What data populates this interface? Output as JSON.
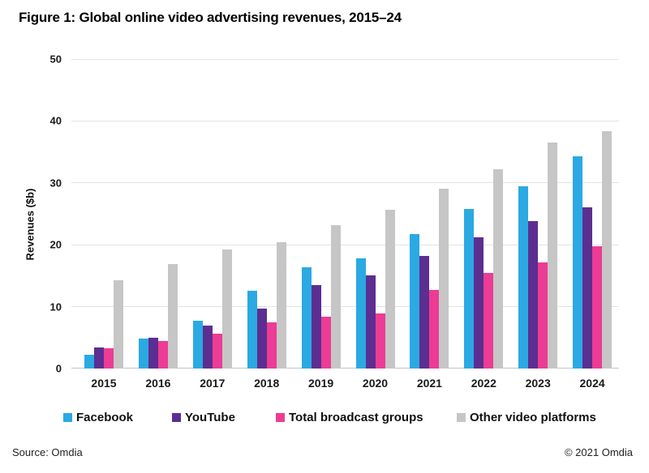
{
  "title": "Figure 1: Global online video advertising revenues, 2015–24",
  "chart_data": {
    "type": "bar",
    "title": "Figure 1: Global online video advertising revenues, 2015–24",
    "xlabel": "",
    "ylabel": "Revenues ($b)",
    "ylim": [
      0,
      50
    ],
    "yticks": [
      0,
      10,
      20,
      30,
      40,
      50
    ],
    "grid": true,
    "legend_position": "bottom",
    "categories": [
      "2015",
      "2016",
      "2017",
      "2018",
      "2019",
      "2020",
      "2021",
      "2022",
      "2023",
      "2024"
    ],
    "series": [
      {
        "name": "Facebook",
        "color": "#2BA9E2",
        "values": [
          2.2,
          4.8,
          7.7,
          12.6,
          16.4,
          17.8,
          21.7,
          25.8,
          29.5,
          34.3
        ]
      },
      {
        "name": "YouTube",
        "color": "#5C2E91",
        "values": [
          3.4,
          5.0,
          6.9,
          9.7,
          13.5,
          15.1,
          18.2,
          21.2,
          23.8,
          26.1
        ]
      },
      {
        "name": "Total broadcast groups",
        "color": "#EC3C95",
        "values": [
          3.3,
          4.5,
          5.6,
          7.4,
          8.4,
          8.9,
          12.7,
          15.5,
          17.2,
          19.7
        ]
      },
      {
        "name": "Other video platforms",
        "color": "#C6C6C6",
        "values": [
          14.3,
          16.9,
          19.2,
          20.4,
          23.2,
          25.6,
          29.1,
          32.2,
          36.5,
          38.4
        ]
      }
    ]
  },
  "footer": {
    "source": "Source: Omdia",
    "copyright": "© 2021 Omdia"
  }
}
